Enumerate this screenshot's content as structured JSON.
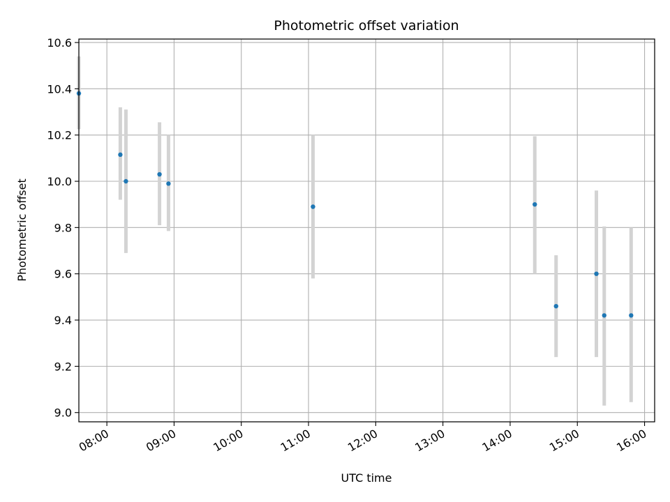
{
  "chart_data": {
    "type": "scatter",
    "title": "Photometric offset variation",
    "xlabel": "UTC time",
    "ylabel": "Photometric offset",
    "x_ticks": [
      "08:00",
      "09:00",
      "10:00",
      "11:00",
      "12:00",
      "13:00",
      "14:00",
      "15:00",
      "16:00"
    ],
    "y_ticks": [
      "9.0",
      "9.2",
      "9.4",
      "9.6",
      "9.8",
      "10.0",
      "10.2",
      "10.4",
      "10.6"
    ],
    "xlim": [
      "07:35",
      "16:09"
    ],
    "ylim": [
      8.96,
      10.615
    ],
    "grid": true,
    "point_color": "#1f77b4",
    "errorbar_color": "#d3d3d3",
    "points": [
      {
        "x": "07:35",
        "y": 10.38,
        "yerr_low": 10.225,
        "yerr_high": 10.54
      },
      {
        "x": "08:12",
        "y": 10.115,
        "yerr_low": 9.92,
        "yerr_high": 10.32
      },
      {
        "x": "08:17",
        "y": 10.0,
        "yerr_low": 9.69,
        "yerr_high": 10.31
      },
      {
        "x": "08:47",
        "y": 10.03,
        "yerr_low": 9.81,
        "yerr_high": 10.255
      },
      {
        "x": "08:55",
        "y": 9.99,
        "yerr_low": 9.785,
        "yerr_high": 10.2
      },
      {
        "x": "11:04",
        "y": 9.89,
        "yerr_low": 9.58,
        "yerr_high": 10.2
      },
      {
        "x": "14:22",
        "y": 9.9,
        "yerr_low": 9.6,
        "yerr_high": 10.195
      },
      {
        "x": "14:41",
        "y": 9.46,
        "yerr_low": 9.24,
        "yerr_high": 9.68
      },
      {
        "x": "15:17",
        "y": 9.6,
        "yerr_low": 9.24,
        "yerr_high": 9.96
      },
      {
        "x": "15:24",
        "y": 9.42,
        "yerr_low": 9.03,
        "yerr_high": 9.805
      },
      {
        "x": "15:48",
        "y": 9.42,
        "yerr_low": 9.045,
        "yerr_high": 9.8
      }
    ]
  }
}
